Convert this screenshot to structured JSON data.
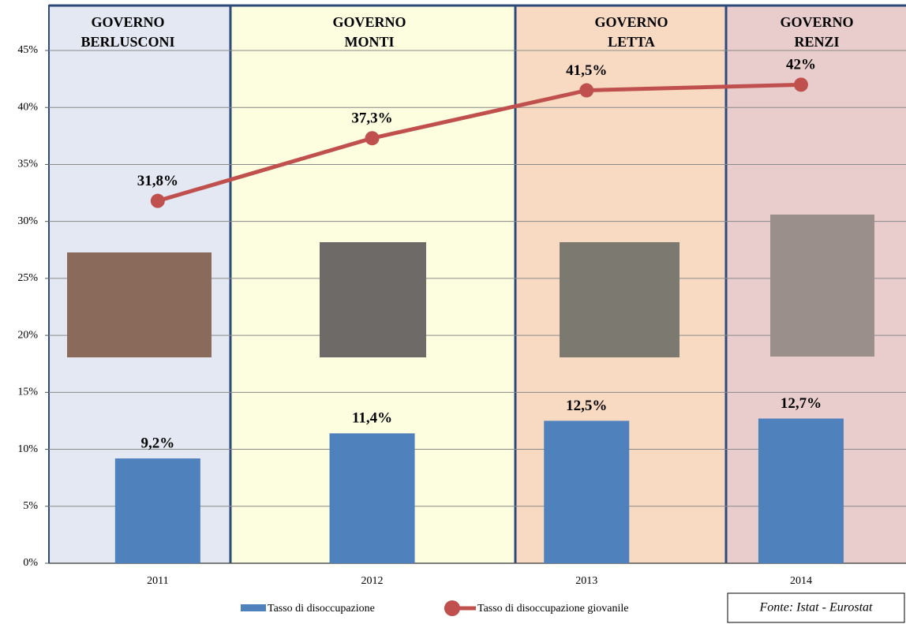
{
  "chart_data": {
    "type": "bar",
    "panels": [
      [
        "GOVERNO",
        "BERLUSCONI"
      ],
      [
        "GOVERNO",
        "MONTI"
      ],
      [
        "GOVERNO",
        "LETTA"
      ],
      [
        "GOVERNO",
        "RENZI"
      ]
    ],
    "categories": [
      "2011",
      "2012",
      "2013",
      "2014"
    ],
    "series": [
      {
        "name": "Tasso di disoccupazione",
        "type": "bar",
        "color": "#4f81bd",
        "values": [
          9.2,
          11.4,
          12.5,
          12.7
        ],
        "value_labels": [
          "9,2%",
          "11,4%",
          "12,5%",
          "12,7%"
        ]
      },
      {
        "name": "Tasso di disoccupazione giovanile",
        "type": "line",
        "color": "#c0504d",
        "values": [
          31.8,
          37.3,
          41.5,
          42
        ],
        "value_labels": [
          "31,8%",
          "37,3%",
          "41,5%",
          "42%"
        ]
      }
    ],
    "ylim": [
      0,
      45
    ],
    "yticks": [
      {
        "value": 0,
        "label": "0%"
      },
      {
        "value": 5,
        "label": "5%"
      },
      {
        "value": 10,
        "label": "10%"
      },
      {
        "value": 15,
        "label": "15%"
      },
      {
        "value": 20,
        "label": "20%"
      },
      {
        "value": 25,
        "label": "25%"
      },
      {
        "value": 30,
        "label": "30%"
      },
      {
        "value": 35,
        "label": "35%"
      },
      {
        "value": 40,
        "label": "40%"
      },
      {
        "value": 45,
        "label": "45%"
      }
    ],
    "grid": true,
    "source": "Fonte: Istat - Eurostat"
  }
}
